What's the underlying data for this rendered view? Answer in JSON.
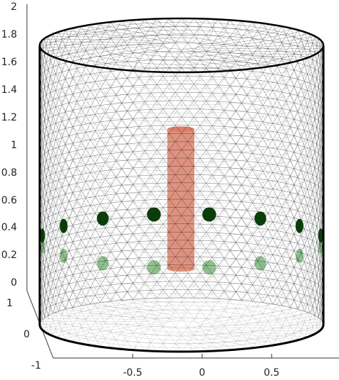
{
  "axes": {
    "z_ticks": [
      "0",
      "0.2",
      "0.4",
      "0.6",
      "0.8",
      "1",
      "1.2",
      "1.4",
      "1.6",
      "1.8",
      "2"
    ],
    "x_ticks": [
      "-0.5",
      "0",
      "0.5"
    ],
    "y_ticks": [
      "-1",
      "0",
      "1"
    ]
  },
  "colors": {
    "mesh": "#000000",
    "electrode_front": "#0b3d0b",
    "electrode_back": "#4a9a4a",
    "inclusion": "#d9806a",
    "background": "#ffffff"
  },
  "scene": {
    "cylinder_radius": 1,
    "cylinder_height": 2,
    "electrode_height": 0.6,
    "electrode_count": 16,
    "inclusion_x": 0.0,
    "inclusion_z_range": [
      0.4,
      1.4
    ]
  }
}
